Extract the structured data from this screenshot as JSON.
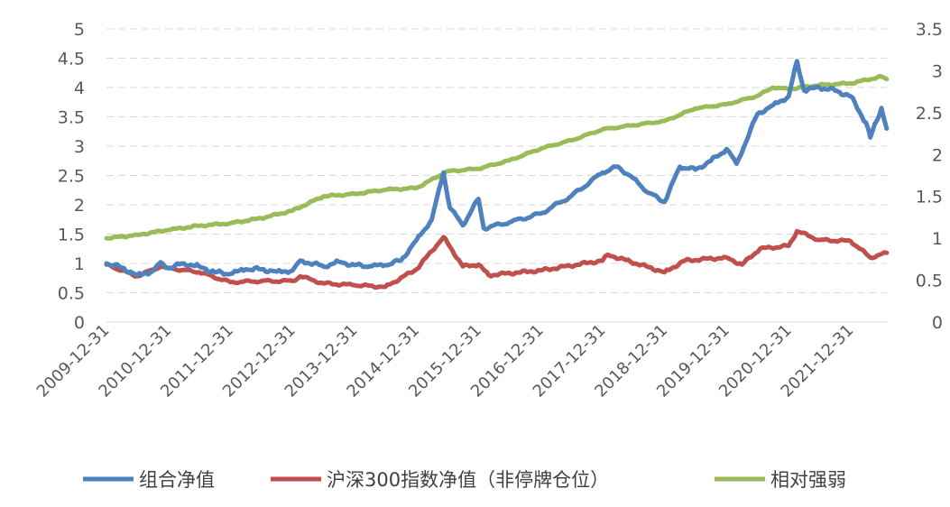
{
  "chart_data": {
    "type": "line",
    "title": "",
    "xlabel": "",
    "ylabel": "",
    "y2label": "",
    "grid": "horizontal dashed",
    "legend_position": "bottom",
    "x_tick_labels": [
      "2009-12-31",
      "2010-12-31",
      "2011-12-31",
      "2012-12-31",
      "2013-12-31",
      "2014-12-31",
      "2015-12-31",
      "2016-12-31",
      "2017-12-31",
      "2018-12-31",
      "2019-12-31",
      "2020-12-31",
      "2021-12-31"
    ],
    "y_left": {
      "min": 0,
      "max": 5,
      "ticks": [
        "0",
        "0.5",
        "1",
        "1.5",
        "2",
        "2.5",
        "3",
        "3.5",
        "4",
        "4.5",
        "5"
      ]
    },
    "y_right": {
      "min": 0,
      "max": 3.5,
      "ticks": [
        "0",
        "0.5",
        "1",
        "1.5",
        "2",
        "2.5",
        "3",
        "3.5"
      ]
    },
    "series": [
      {
        "name": "组合净值",
        "axis": "left",
        "color": "#4F81BD",
        "points": [
          [
            "2009-12-31",
            1.0
          ],
          [
            "2010-03-31",
            0.93
          ],
          [
            "2010-06-30",
            0.8
          ],
          [
            "2010-09-30",
            0.87
          ],
          [
            "2010-11-15",
            1.02
          ],
          [
            "2010-12-31",
            0.92
          ],
          [
            "2011-03-31",
            1.0
          ],
          [
            "2011-06-30",
            0.95
          ],
          [
            "2011-09-30",
            0.85
          ],
          [
            "2011-12-31",
            0.82
          ],
          [
            "2012-03-31",
            0.9
          ],
          [
            "2012-06-30",
            0.9
          ],
          [
            "2012-09-30",
            0.86
          ],
          [
            "2012-12-31",
            0.88
          ],
          [
            "2013-02-15",
            1.05
          ],
          [
            "2013-06-30",
            0.95
          ],
          [
            "2013-09-30",
            1.03
          ],
          [
            "2013-12-31",
            0.97
          ],
          [
            "2014-03-31",
            0.95
          ],
          [
            "2014-06-30",
            0.97
          ],
          [
            "2014-09-30",
            1.05
          ],
          [
            "2014-12-31",
            1.4
          ],
          [
            "2015-03-31",
            1.75
          ],
          [
            "2015-06-08",
            2.55
          ],
          [
            "2015-07-15",
            1.95
          ],
          [
            "2015-09-30",
            1.65
          ],
          [
            "2015-12-31",
            2.1
          ],
          [
            "2016-01-31",
            1.6
          ],
          [
            "2016-06-30",
            1.7
          ],
          [
            "2016-12-31",
            1.85
          ],
          [
            "2017-06-30",
            2.15
          ],
          [
            "2017-12-31",
            2.55
          ],
          [
            "2018-03-31",
            2.65
          ],
          [
            "2018-06-30",
            2.45
          ],
          [
            "2018-09-30",
            2.2
          ],
          [
            "2018-12-31",
            2.05
          ],
          [
            "2019-03-31",
            2.65
          ],
          [
            "2019-06-30",
            2.6
          ],
          [
            "2019-09-30",
            2.75
          ],
          [
            "2019-12-31",
            2.95
          ],
          [
            "2020-02-28",
            2.7
          ],
          [
            "2020-06-30",
            3.55
          ],
          [
            "2020-09-30",
            3.7
          ],
          [
            "2020-12-31",
            3.85
          ],
          [
            "2021-02-18",
            4.45
          ],
          [
            "2021-03-31",
            3.95
          ],
          [
            "2021-06-30",
            4.0
          ],
          [
            "2021-09-30",
            3.95
          ],
          [
            "2021-12-31",
            3.85
          ],
          [
            "2022-03-31",
            3.4
          ],
          [
            "2022-04-26",
            3.15
          ],
          [
            "2022-06-30",
            3.65
          ],
          [
            "2022-07-31",
            3.3
          ]
        ]
      },
      {
        "name": "沪深300指数净值（非停牌仓位）",
        "axis": "left",
        "color": "#C0504D",
        "points": [
          [
            "2009-12-31",
            0.98
          ],
          [
            "2010-06-30",
            0.78
          ],
          [
            "2010-11-15",
            0.95
          ],
          [
            "2010-12-31",
            0.92
          ],
          [
            "2011-06-30",
            0.85
          ],
          [
            "2011-12-31",
            0.68
          ],
          [
            "2012-06-30",
            0.7
          ],
          [
            "2012-12-31",
            0.7
          ],
          [
            "2013-02-15",
            0.78
          ],
          [
            "2013-06-30",
            0.66
          ],
          [
            "2013-12-31",
            0.63
          ],
          [
            "2014-06-30",
            0.6
          ],
          [
            "2014-12-31",
            0.9
          ],
          [
            "2015-06-08",
            1.45
          ],
          [
            "2015-09-30",
            0.95
          ],
          [
            "2015-12-31",
            0.98
          ],
          [
            "2016-02-29",
            0.8
          ],
          [
            "2016-12-31",
            0.88
          ],
          [
            "2017-12-31",
            1.05
          ],
          [
            "2018-01-31",
            1.15
          ],
          [
            "2018-12-31",
            0.85
          ],
          [
            "2019-04-30",
            1.05
          ],
          [
            "2019-12-31",
            1.1
          ],
          [
            "2020-03-31",
            0.98
          ],
          [
            "2020-07-15",
            1.25
          ],
          [
            "2020-12-31",
            1.3
          ],
          [
            "2021-02-18",
            1.55
          ],
          [
            "2021-06-30",
            1.4
          ],
          [
            "2021-12-31",
            1.38
          ],
          [
            "2022-04-26",
            1.1
          ],
          [
            "2022-07-31",
            1.18
          ]
        ]
      },
      {
        "name": "相对强弱",
        "axis": "right",
        "color": "#9BBB59",
        "points": [
          [
            "2009-12-31",
            1.0
          ],
          [
            "2010-06-30",
            1.04
          ],
          [
            "2010-12-31",
            1.1
          ],
          [
            "2011-06-30",
            1.15
          ],
          [
            "2011-12-31",
            1.18
          ],
          [
            "2012-06-30",
            1.24
          ],
          [
            "2012-12-31",
            1.33
          ],
          [
            "2013-06-30",
            1.5
          ],
          [
            "2013-12-31",
            1.53
          ],
          [
            "2014-06-30",
            1.58
          ],
          [
            "2014-12-31",
            1.6
          ],
          [
            "2015-06-30",
            1.8
          ],
          [
            "2015-12-31",
            1.83
          ],
          [
            "2016-06-30",
            1.93
          ],
          [
            "2016-12-31",
            2.07
          ],
          [
            "2017-06-30",
            2.17
          ],
          [
            "2017-12-31",
            2.3
          ],
          [
            "2018-06-30",
            2.35
          ],
          [
            "2018-12-31",
            2.4
          ],
          [
            "2019-06-30",
            2.55
          ],
          [
            "2019-12-31",
            2.6
          ],
          [
            "2020-06-30",
            2.7
          ],
          [
            "2020-09-30",
            2.8
          ],
          [
            "2020-12-31",
            2.78
          ],
          [
            "2021-06-30",
            2.83
          ],
          [
            "2021-12-31",
            2.85
          ],
          [
            "2022-06-30",
            2.93
          ],
          [
            "2022-07-31",
            2.9
          ]
        ]
      }
    ]
  }
}
